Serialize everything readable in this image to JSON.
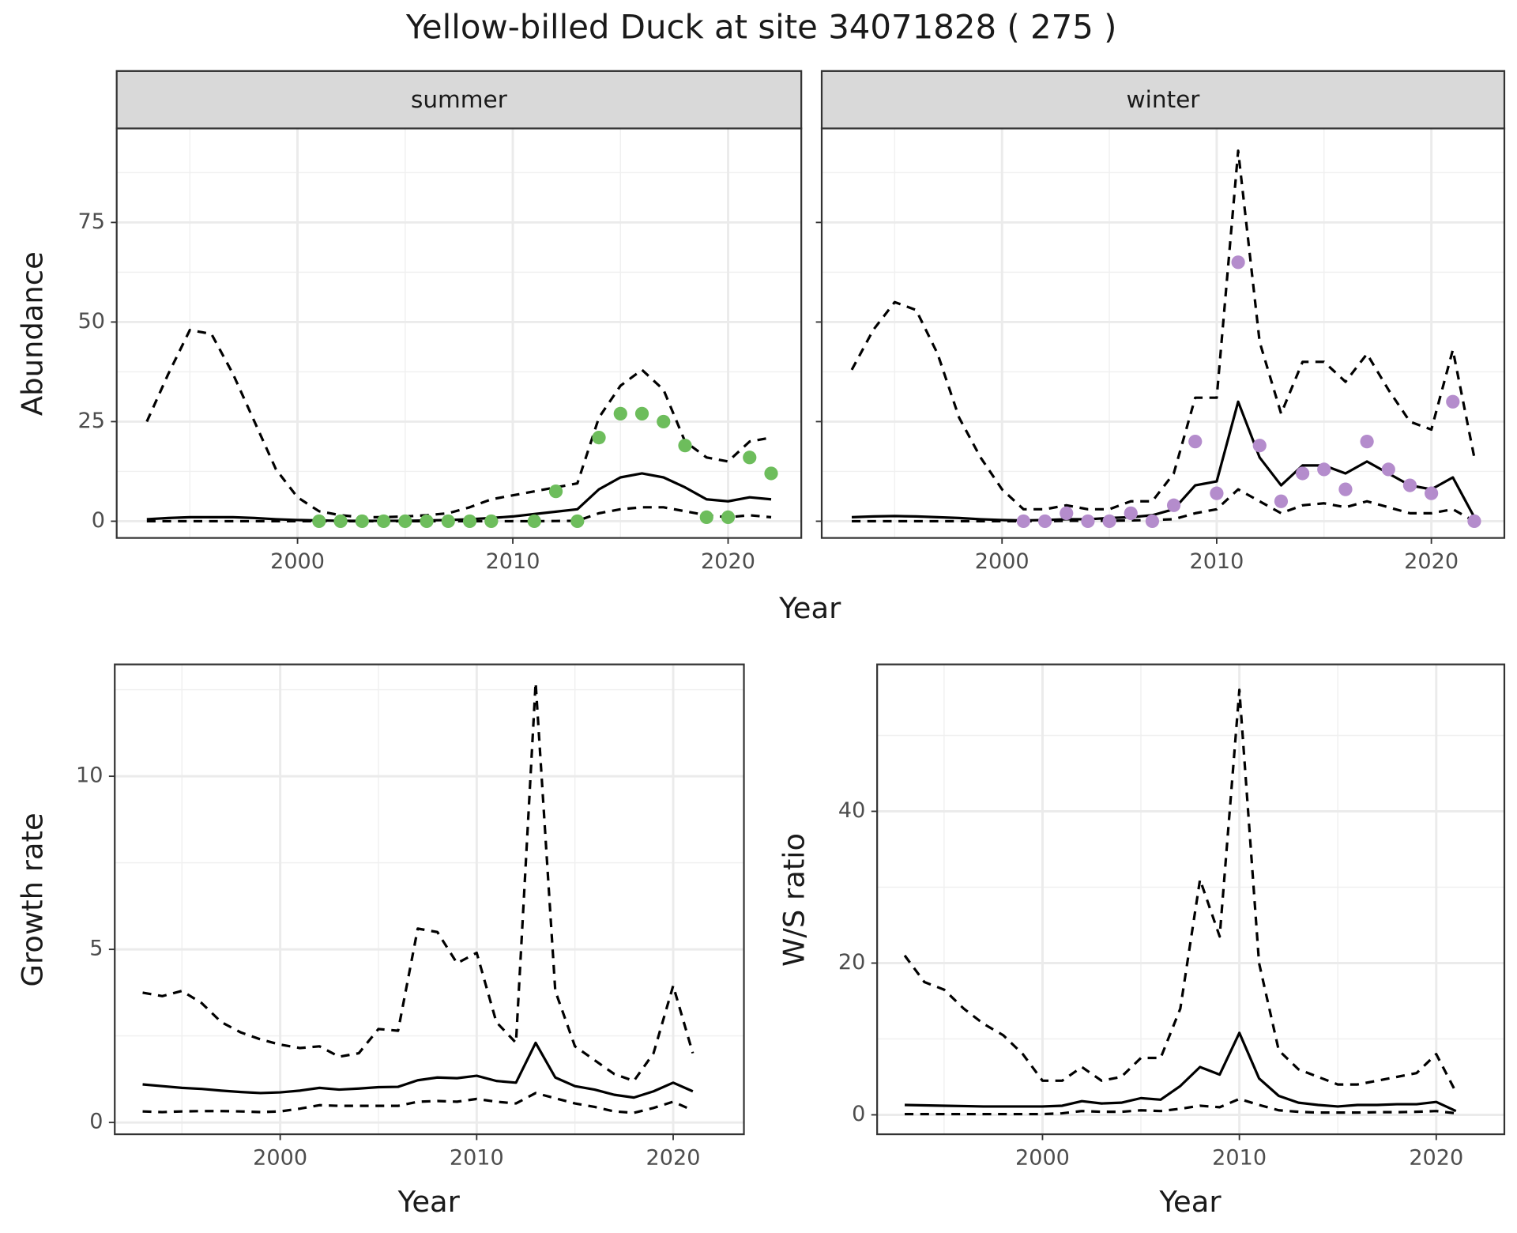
{
  "title": "Yellow-billed Duck at site 34071828 ( 275 )",
  "chart_data": [
    {
      "type": "line",
      "xlabel": "Year",
      "ylabel": "Abundance",
      "xlim": [
        1991.6,
        2023.4
      ],
      "ylim": [
        -4.2,
        98.6
      ],
      "xticks": [
        2000,
        2010,
        2020
      ],
      "yticks": [
        0,
        25,
        50,
        75
      ],
      "grid": true,
      "minor_grid": true,
      "facets": [
        {
          "label": "summer",
          "x": [
            1993,
            1994,
            1995,
            1996,
            1997,
            1998,
            1999,
            2000,
            2001,
            2002,
            2003,
            2004,
            2005,
            2006,
            2007,
            2008,
            2009,
            2010,
            2011,
            2012,
            2013,
            2014,
            2015,
            2016,
            2017,
            2018,
            2019,
            2020,
            2021,
            2022
          ],
          "series": [
            {
              "style": "dashed",
              "color": "#000000",
              "values": [
                25,
                37,
                48,
                47,
                37,
                25,
                13,
                6,
                2.5,
                1.5,
                1,
                1,
                1.2,
                1.5,
                2,
                3.5,
                5.5,
                6.5,
                7.5,
                8.5,
                9.5,
                26,
                34,
                38,
                33,
                20,
                16,
                15,
                20,
                21
              ]
            },
            {
              "style": "solid",
              "color": "#000000",
              "values": [
                0.5,
                0.8,
                1,
                1,
                1,
                0.8,
                0.5,
                0.3,
                0.2,
                0.1,
                0.1,
                0.1,
                0.1,
                0.2,
                0.3,
                0.5,
                0.8,
                1.2,
                1.8,
                2.4,
                3,
                8,
                11,
                12,
                11,
                8.5,
                5.5,
                5,
                6,
                5.5
              ]
            },
            {
              "style": "dashed",
              "color": "#000000",
              "values": [
                0,
                0,
                0,
                0,
                0,
                0,
                0,
                0,
                0,
                0,
                0,
                0,
                0,
                0,
                0,
                0,
                0,
                0,
                0,
                0.05,
                0.1,
                2,
                3,
                3.5,
                3.5,
                2.5,
                1.5,
                1,
                1.5,
                1
              ]
            },
            {
              "style": "points",
              "color": "#6dbd5c",
              "values": [
                null,
                null,
                null,
                null,
                null,
                null,
                null,
                null,
                0,
                0,
                0,
                0,
                0,
                0,
                0,
                0,
                0,
                null,
                0,
                7.5,
                0,
                21,
                27,
                27,
                25,
                19,
                1,
                1,
                16,
                12
              ]
            }
          ]
        },
        {
          "label": "winter",
          "x": [
            1993,
            1994,
            1995,
            1996,
            1997,
            1998,
            1999,
            2000,
            2001,
            2002,
            2003,
            2004,
            2005,
            2006,
            2007,
            2008,
            2009,
            2010,
            2011,
            2012,
            2013,
            2014,
            2015,
            2016,
            2017,
            2018,
            2019,
            2020,
            2021,
            2022
          ],
          "series": [
            {
              "style": "dashed",
              "color": "#000000",
              "values": [
                38,
                48,
                55,
                53,
                42,
                26,
                16,
                8,
                3,
                3,
                4,
                3,
                3,
                5,
                5,
                12,
                31,
                31,
                93,
                45,
                27,
                40,
                40,
                35,
                42,
                33,
                25,
                23,
                43,
                16
              ]
            },
            {
              "style": "solid",
              "color": "#000000",
              "values": [
                1,
                1.2,
                1.3,
                1.2,
                1,
                0.8,
                0.5,
                0.3,
                0.2,
                0.3,
                0.5,
                0.5,
                0.8,
                1,
                1.5,
                3,
                9,
                10,
                30,
                16,
                9,
                14,
                14,
                12,
                15,
                12,
                9,
                8,
                11,
                1
              ]
            },
            {
              "style": "dashed",
              "color": "#000000",
              "values": [
                0,
                0,
                0,
                0,
                0,
                0,
                0,
                0,
                0,
                0,
                0.1,
                0.1,
                0.1,
                0.2,
                0.3,
                0.5,
                2,
                3,
                8,
                5,
                2,
                4,
                4.5,
                3.5,
                5,
                3.5,
                2,
                2,
                3,
                0
              ]
            },
            {
              "style": "points",
              "color": "#b48ccc",
              "values": [
                null,
                null,
                null,
                null,
                null,
                null,
                null,
                null,
                0,
                0,
                2,
                0,
                0,
                2,
                0,
                4,
                20,
                7,
                65,
                19,
                5,
                12,
                13,
                8,
                20,
                13,
                9,
                7,
                30,
                0
              ]
            }
          ]
        }
      ]
    },
    {
      "type": "line",
      "xlabel": "Year",
      "ylabel": "Growth rate",
      "xlim": [
        1991.58,
        2023.6
      ],
      "ylim": [
        -0.34,
        13.23
      ],
      "xticks": [
        2000,
        2010,
        2020
      ],
      "yticks": [
        0,
        5,
        10
      ],
      "grid": true,
      "minor_grid": true,
      "facets": [
        {
          "x": [
            1993,
            1994,
            1995,
            1996,
            1997,
            1998,
            1999,
            2000,
            2001,
            2002,
            2003,
            2004,
            2005,
            2006,
            2007,
            2008,
            2009,
            2010,
            2011,
            2012,
            2013,
            2014,
            2015,
            2016,
            2017,
            2018,
            2019,
            2020,
            2021
          ],
          "series": [
            {
              "style": "dashed",
              "color": "#000000",
              "values": [
                3.75,
                3.65,
                3.8,
                3.45,
                2.9,
                2.6,
                2.4,
                2.25,
                2.15,
                2.2,
                1.9,
                2,
                2.7,
                2.65,
                5.6,
                5.5,
                4.6,
                4.9,
                2.9,
                2.3,
                12.7,
                3.8,
                2.2,
                1.8,
                1.4,
                1.2,
                2,
                3.95,
                2
              ]
            },
            {
              "style": "solid",
              "color": "#000000",
              "values": [
                1.1,
                1.05,
                1,
                0.97,
                0.92,
                0.88,
                0.85,
                0.87,
                0.92,
                1,
                0.95,
                0.98,
                1.02,
                1.03,
                1.22,
                1.3,
                1.28,
                1.35,
                1.2,
                1.15,
                2.3,
                1.3,
                1.05,
                0.95,
                0.8,
                0.72,
                0.9,
                1.15,
                0.9
              ]
            },
            {
              "style": "dashed",
              "color": "#000000",
              "values": [
                0.32,
                0.3,
                0.32,
                0.33,
                0.33,
                0.32,
                0.3,
                0.32,
                0.4,
                0.5,
                0.48,
                0.48,
                0.48,
                0.48,
                0.6,
                0.62,
                0.6,
                0.68,
                0.6,
                0.55,
                0.85,
                0.7,
                0.55,
                0.45,
                0.32,
                0.28,
                0.42,
                0.6,
                0.35
              ]
            }
          ]
        }
      ]
    },
    {
      "type": "line",
      "xlabel": "Year",
      "ylabel": "W/S ratio",
      "xlim": [
        1991.6,
        2023.46
      ],
      "ylim": [
        -2.56,
        59.36
      ],
      "xticks": [
        2000,
        2010,
        2020
      ],
      "yticks": [
        0,
        20,
        40
      ],
      "grid": true,
      "minor_grid": true,
      "facets": [
        {
          "x": [
            1993,
            1994,
            1995,
            1996,
            1997,
            1998,
            1999,
            2000,
            2001,
            2002,
            2003,
            2004,
            2005,
            2006,
            2007,
            2008,
            2009,
            2010,
            2011,
            2012,
            2013,
            2014,
            2015,
            2016,
            2017,
            2018,
            2019,
            2020,
            2021
          ],
          "series": [
            {
              "style": "dashed",
              "color": "#000000",
              "values": [
                21,
                17.5,
                16.5,
                14,
                12,
                10.5,
                8,
                4.5,
                4.5,
                6.3,
                4.5,
                5,
                7.5,
                7.5,
                14,
                31,
                23.5,
                56,
                20,
                8.5,
                6,
                5,
                4,
                4,
                4.5,
                5,
                5.5,
                8,
                3
              ]
            },
            {
              "style": "solid",
              "color": "#000000",
              "values": [
                1.3,
                1.25,
                1.2,
                1.15,
                1.1,
                1.1,
                1.1,
                1.1,
                1.2,
                1.8,
                1.5,
                1.6,
                2.2,
                2,
                3.8,
                6.3,
                5.3,
                10.8,
                4.8,
                2.5,
                1.6,
                1.3,
                1.1,
                1.3,
                1.3,
                1.4,
                1.4,
                1.7,
                0.5
              ]
            },
            {
              "style": "dashed",
              "color": "#000000",
              "values": [
                0.1,
                0.1,
                0.1,
                0.1,
                0.1,
                0.1,
                0.1,
                0.1,
                0.2,
                0.5,
                0.4,
                0.4,
                0.6,
                0.5,
                0.8,
                1.2,
                1,
                2.1,
                1.3,
                0.6,
                0.4,
                0.3,
                0.3,
                0.3,
                0.35,
                0.35,
                0.4,
                0.5,
                0.2
              ]
            }
          ]
        }
      ]
    }
  ]
}
